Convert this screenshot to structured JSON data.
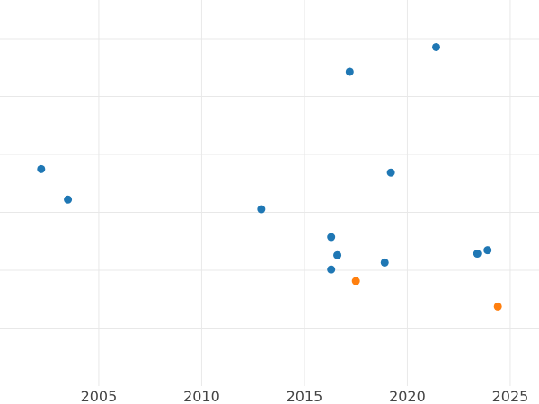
{
  "chart_data": {
    "type": "scatter",
    "title": "",
    "xlabel": "",
    "ylabel": "",
    "xlim": [
      2000.2,
      2026.4
    ],
    "ylim": [
      0,
      100
    ],
    "x_ticks": [
      2005,
      2010,
      2015,
      2020,
      2025
    ],
    "y_gridlines": [
      15,
      30,
      45,
      60,
      75,
      90
    ],
    "grid": true,
    "legend": "none",
    "series": [
      {
        "color": "#1f77b4",
        "points": [
          {
            "x": 2002.2,
            "y": 56.2
          },
          {
            "x": 2003.5,
            "y": 48.3
          },
          {
            "x": 2012.9,
            "y": 45.8
          },
          {
            "x": 2016.3,
            "y": 38.6
          },
          {
            "x": 2016.6,
            "y": 33.9
          },
          {
            "x": 2016.3,
            "y": 30.2
          },
          {
            "x": 2017.2,
            "y": 81.4
          },
          {
            "x": 2018.9,
            "y": 32.0
          },
          {
            "x": 2019.2,
            "y": 55.3
          },
          {
            "x": 2021.4,
            "y": 87.8
          },
          {
            "x": 2023.4,
            "y": 34.3
          },
          {
            "x": 2023.9,
            "y": 35.2
          }
        ]
      },
      {
        "color": "#ff7f0e",
        "points": [
          {
            "x": 2017.5,
            "y": 27.2
          },
          {
            "x": 2024.4,
            "y": 20.6
          }
        ]
      }
    ]
  }
}
